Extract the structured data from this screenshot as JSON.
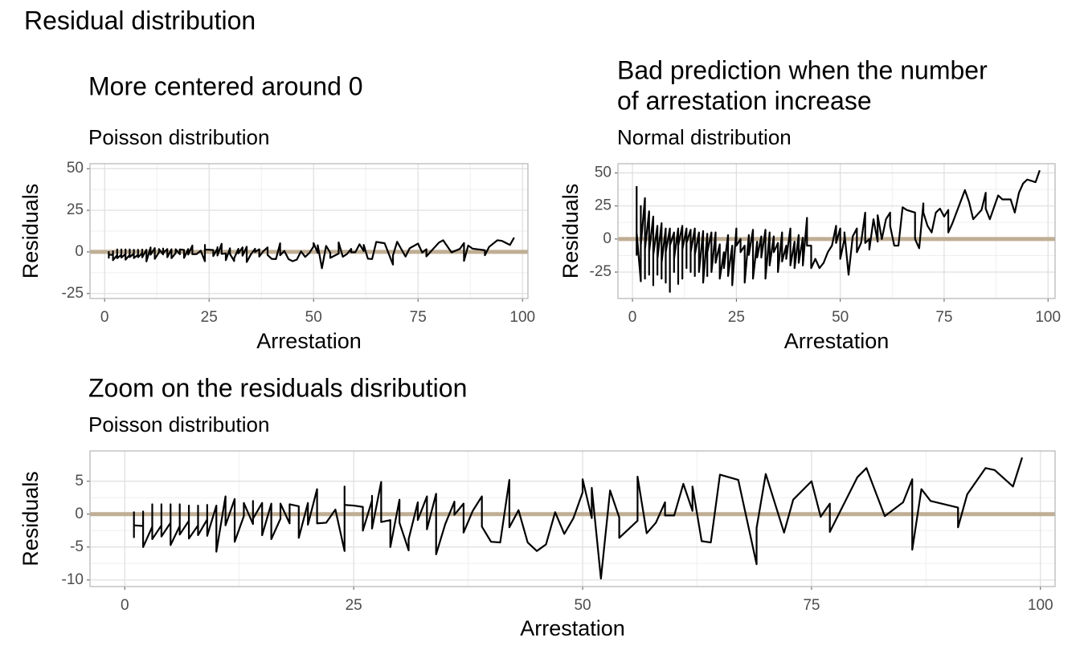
{
  "title": "Residual distribution",
  "chart_data": [
    {
      "type": "line",
      "title": "More centered around 0",
      "subtitle": "Poisson distribution",
      "x_label": "Arrestation",
      "y_label": "Residuals",
      "color": "#000000",
      "hline": 0,
      "hline_color": "#bfae94",
      "grid": true,
      "minor_grid": true,
      "xlim": [
        -3.5,
        101.3
      ],
      "xticks": [
        0,
        25,
        50,
        75,
        100
      ],
      "ylim": [
        -28,
        53
      ],
      "yticks": [
        -25,
        0,
        25,
        50
      ],
      "x": [
        1,
        1,
        1,
        2,
        2,
        2,
        3,
        3,
        3,
        4,
        4,
        4,
        5,
        5,
        5,
        6,
        6,
        6,
        7,
        7,
        7,
        8,
        8,
        8,
        9,
        9,
        9,
        10,
        10,
        11,
        11,
        12,
        12,
        13,
        13,
        14,
        14,
        14,
        15,
        15,
        16,
        16,
        17,
        17,
        18,
        18,
        19,
        19,
        20,
        20,
        21,
        21,
        22,
        23,
        24,
        24,
        24,
        25,
        26,
        26,
        27,
        27,
        27,
        28,
        28,
        29,
        29,
        30,
        30,
        31,
        31,
        32,
        32,
        33,
        33,
        34,
        34,
        35,
        36,
        36,
        37,
        37,
        38,
        39,
        39,
        40,
        41,
        42,
        42,
        43,
        44,
        45,
        46,
        47,
        48,
        49,
        50,
        50,
        51,
        51,
        52,
        53,
        54,
        54,
        56,
        56,
        57,
        58,
        59,
        59,
        60,
        61,
        62,
        62,
        63,
        64,
        65,
        67,
        69,
        69,
        70,
        72,
        73,
        75,
        76,
        77,
        77,
        80,
        81,
        83,
        85,
        86,
        86,
        87,
        88,
        91,
        91,
        92,
        94,
        95,
        97,
        98
      ],
      "values": [
        0.4,
        -3.5,
        -1.7,
        -1.8,
        0.4,
        -5,
        -1.9,
        1.5,
        -3.8,
        -1.7,
        1.5,
        -3.4,
        -1.3,
        1.5,
        -4.7,
        -1.8,
        1.5,
        -3.1,
        -1,
        1.3,
        -3.7,
        -1.7,
        1.3,
        -3.2,
        -0.8,
        1.4,
        -3.3,
        1.3,
        -5.7,
        2.7,
        -1.7,
        2.3,
        -4.2,
        -0.3,
        1.7,
        -1.5,
        2,
        -0.7,
        1.7,
        -3.2,
        1.6,
        -3.8,
        -0.7,
        1.6,
        -1.4,
        1.5,
        1.2,
        -3.6,
        1.7,
        -1.6,
        3.8,
        -1.4,
        -1.3,
        0.7,
        -5.6,
        4.2,
        1.4,
        1.3,
        1.1,
        -2.5,
        2.1,
        2.8,
        -2.2,
        4.9,
        -1.2,
        -0.9,
        -5,
        2.2,
        -1.3,
        -5.5,
        -3.8,
        1.8,
        -0.9,
        2.7,
        -2.3,
        3.1,
        -6.1,
        -1.5,
        1.9,
        -0.1,
        1.6,
        -2.8,
        0.5,
        2.7,
        -1.9,
        -4.2,
        -4.3,
        5.2,
        -2,
        0.6,
        -4.3,
        -5.6,
        -4.6,
        0.3,
        -3,
        -0.6,
        3.3,
        5.3,
        -0.6,
        4,
        -9.8,
        3.6,
        -0.5,
        -3.6,
        -1,
        5.7,
        -2.9,
        -1.3,
        1.8,
        -0.2,
        -0.2,
        4.6,
        0.5,
        4.2,
        -4.1,
        -4.3,
        6,
        5.2,
        -7.6,
        -2.1,
        6.1,
        -2.8,
        2.2,
        5,
        -0.4,
        1.6,
        -2.7,
        5.6,
        7,
        -0.3,
        1.8,
        5.3,
        -5.4,
        3.8,
        2,
        1,
        -2,
        3,
        7,
        6.7,
        4.2,
        8.6
      ]
    },
    {
      "type": "line",
      "title": [
        "Bad prediction when the number",
        "of arrestation increase"
      ],
      "subtitle": "Normal distribution",
      "x_label": "Arrestation",
      "y_label": "Residuals",
      "color": "#000000",
      "hline": 0,
      "hline_color": "#bfae94",
      "grid": true,
      "minor_grid": true,
      "xlim": [
        -3.5,
        101.7
      ],
      "xticks": [
        0,
        25,
        50,
        75,
        100
      ],
      "ylim": [
        -45,
        57
      ],
      "yticks": [
        -25,
        0,
        25,
        50
      ],
      "x": [
        1,
        1,
        1,
        2,
        2,
        2,
        3,
        3,
        3,
        4,
        4,
        4,
        5,
        5,
        5,
        6,
        6,
        6,
        7,
        7,
        7,
        8,
        8,
        8,
        9,
        9,
        9,
        10,
        10,
        10,
        11,
        11,
        11,
        12,
        12,
        12,
        13,
        13,
        13,
        14,
        14,
        14,
        15,
        15,
        15,
        16,
        16,
        17,
        17,
        18,
        18,
        18,
        19,
        19,
        20,
        20,
        21,
        21,
        22,
        22,
        23,
        23,
        24,
        24,
        25,
        25,
        26,
        26,
        27,
        27,
        28,
        28,
        29,
        29,
        30,
        30,
        31,
        31,
        32,
        32,
        33,
        33,
        34,
        34,
        35,
        35,
        36,
        36,
        37,
        37,
        38,
        38,
        39,
        39,
        40,
        40,
        41,
        41,
        42,
        42,
        43,
        43,
        44,
        45,
        46,
        47,
        48,
        49,
        49,
        50,
        50,
        51,
        51,
        52,
        53,
        54,
        54,
        55,
        56,
        56,
        57,
        57,
        58,
        59,
        59,
        60,
        61,
        62,
        62,
        63,
        64,
        65,
        66,
        68,
        68,
        69,
        70,
        70,
        71,
        72,
        73,
        74,
        75,
        76,
        76,
        77,
        80,
        81,
        82,
        84,
        85,
        85,
        86,
        88,
        89,
        90,
        91,
        92,
        93,
        94,
        95,
        97,
        98
      ],
      "values": [
        40,
        -12,
        5,
        -32,
        25,
        -5,
        31,
        -30,
        -8,
        21,
        -27,
        -10,
        17,
        -35,
        -12,
        10,
        -27,
        -15,
        12,
        -30,
        -18,
        8,
        -33,
        -10,
        8,
        -40,
        -5,
        5,
        -25,
        -15,
        8,
        -34,
        -5,
        10,
        -30,
        -8,
        8,
        -22,
        -3,
        7,
        -25,
        -10,
        8,
        -28,
        -12,
        5,
        -25,
        6,
        -33,
        4,
        -28,
        -10,
        5,
        -25,
        5,
        -18,
        -4,
        -30,
        -10,
        -22,
        3,
        -28,
        -5,
        -35,
        8,
        -5,
        0,
        -10,
        -5,
        -33,
        3,
        -12,
        7,
        -30,
        -2,
        -14,
        2,
        -14,
        7,
        -30,
        5,
        -20,
        2,
        -10,
        -3,
        -25,
        5,
        -17,
        -5,
        -15,
        8,
        -20,
        -2,
        -22,
        3,
        -18,
        1,
        -20,
        16,
        -5,
        -5,
        -22,
        -15,
        -22,
        -18,
        -10,
        -5,
        10,
        -3,
        8,
        -15,
        0,
        5,
        -27,
        2,
        8,
        -10,
        -3,
        20,
        -3,
        0,
        -8,
        15,
        -2,
        18,
        0,
        15,
        20,
        10,
        -5,
        -5,
        24,
        22,
        20,
        0,
        -7,
        27,
        20,
        10,
        5,
        20,
        23,
        17,
        22,
        5,
        12,
        37,
        28,
        15,
        22,
        35,
        23,
        15,
        33,
        30,
        30,
        30,
        20,
        35,
        42,
        45,
        43,
        52
      ]
    },
    {
      "type": "line",
      "title": "Zoom on the residuals disribution",
      "subtitle": "Poisson distribution",
      "x_label": "Arrestation",
      "y_label": "Residuals",
      "color": "#000000",
      "hline": 0,
      "hline_color": "#bfae94",
      "grid": true,
      "minor_grid": true,
      "xlim": [
        -3.8,
        101.6
      ],
      "xticks": [
        0,
        25,
        50,
        75,
        100
      ],
      "ylim": [
        -11,
        9.6
      ],
      "yticks": [
        -10,
        -5,
        0,
        5
      ],
      "x": [
        1,
        1,
        1,
        2,
        2,
        2,
        3,
        3,
        3,
        4,
        4,
        4,
        5,
        5,
        5,
        6,
        6,
        6,
        7,
        7,
        7,
        8,
        8,
        8,
        9,
        9,
        9,
        10,
        10,
        11,
        11,
        12,
        12,
        13,
        13,
        14,
        14,
        14,
        15,
        15,
        16,
        16,
        17,
        17,
        18,
        18,
        19,
        19,
        20,
        20,
        21,
        21,
        22,
        23,
        24,
        24,
        24,
        25,
        26,
        26,
        27,
        27,
        27,
        28,
        28,
        29,
        29,
        30,
        30,
        31,
        31,
        32,
        32,
        33,
        33,
        34,
        34,
        35,
        36,
        36,
        37,
        37,
        38,
        39,
        39,
        40,
        41,
        42,
        42,
        43,
        44,
        45,
        46,
        47,
        48,
        49,
        50,
        50,
        51,
        51,
        52,
        53,
        54,
        54,
        56,
        56,
        57,
        58,
        59,
        59,
        60,
        61,
        62,
        62,
        63,
        64,
        65,
        67,
        69,
        69,
        70,
        72,
        73,
        75,
        76,
        77,
        77,
        80,
        81,
        83,
        85,
        86,
        86,
        87,
        88,
        91,
        91,
        92,
        94,
        95,
        97,
        98
      ],
      "values": [
        0.4,
        -3.5,
        -1.7,
        -1.8,
        0.4,
        -5,
        -1.9,
        1.5,
        -3.8,
        -1.7,
        1.5,
        -3.4,
        -1.3,
        1.5,
        -4.7,
        -1.8,
        1.5,
        -3.1,
        -1,
        1.3,
        -3.7,
        -1.7,
        1.3,
        -3.2,
        -0.8,
        1.4,
        -3.3,
        1.3,
        -5.7,
        2.7,
        -1.7,
        2.3,
        -4.2,
        -0.3,
        1.7,
        -1.5,
        2,
        -0.7,
        1.7,
        -3.2,
        1.6,
        -3.8,
        -0.7,
        1.6,
        -1.4,
        1.5,
        1.2,
        -3.6,
        1.7,
        -1.6,
        3.8,
        -1.4,
        -1.3,
        0.7,
        -5.6,
        4.2,
        1.4,
        1.3,
        1.1,
        -2.5,
        2.1,
        2.8,
        -2.2,
        4.9,
        -1.2,
        -0.9,
        -5,
        2.2,
        -1.3,
        -5.5,
        -3.8,
        1.8,
        -0.9,
        2.7,
        -2.3,
        3.1,
        -6.1,
        -1.5,
        1.9,
        -0.1,
        1.6,
        -2.8,
        0.5,
        2.7,
        -1.9,
        -4.2,
        -4.3,
        5.2,
        -2,
        0.6,
        -4.3,
        -5.6,
        -4.6,
        0.3,
        -3,
        -0.6,
        3.3,
        5.3,
        -0.6,
        4,
        -9.8,
        3.6,
        -0.5,
        -3.6,
        -1,
        5.7,
        -2.9,
        -1.3,
        1.8,
        -0.2,
        -0.2,
        4.6,
        0.5,
        4.2,
        -4.1,
        -4.3,
        6,
        5.2,
        -7.6,
        -2.1,
        6.1,
        -2.8,
        2.2,
        5,
        -0.4,
        1.6,
        -2.7,
        5.6,
        7,
        -0.3,
        1.8,
        5.3,
        -5.4,
        3.8,
        2,
        1,
        -2,
        3,
        7,
        6.7,
        4.2,
        8.6
      ]
    }
  ]
}
